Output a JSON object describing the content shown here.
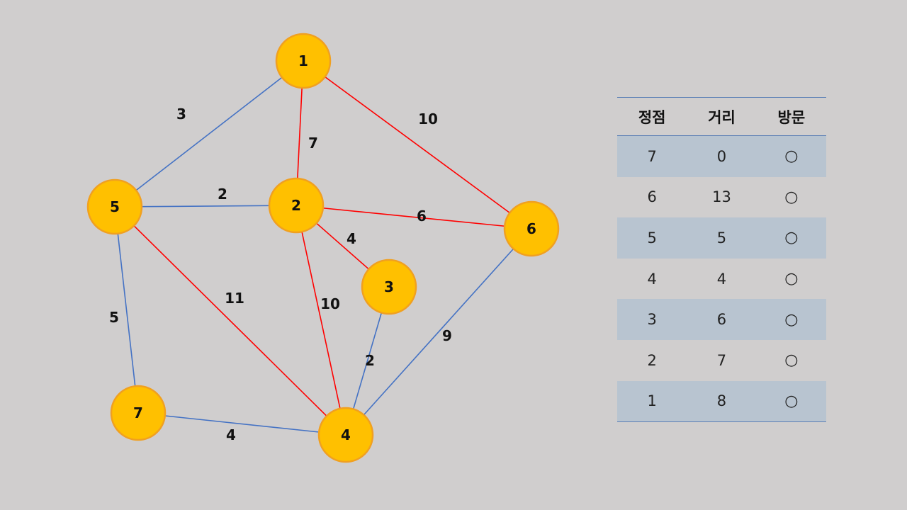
{
  "colors": {
    "background": "#d0cece",
    "node_fill": "#ffc000",
    "node_stroke": "#f0a020",
    "edge_blue": "#4472c4",
    "edge_red": "#ff0000",
    "row_shade": "#b8c4d0"
  },
  "graph": {
    "nodes": [
      {
        "id": "1",
        "label": "1"
      },
      {
        "id": "2",
        "label": "2"
      },
      {
        "id": "3",
        "label": "3"
      },
      {
        "id": "4",
        "label": "4"
      },
      {
        "id": "5",
        "label": "5"
      },
      {
        "id": "6",
        "label": "6"
      },
      {
        "id": "7",
        "label": "7"
      }
    ],
    "edges": [
      {
        "from": "1",
        "to": "5",
        "weight": "3",
        "color": "blue"
      },
      {
        "from": "1",
        "to": "2",
        "weight": "7",
        "color": "red"
      },
      {
        "from": "1",
        "to": "6",
        "weight": "10",
        "color": "red"
      },
      {
        "from": "5",
        "to": "2",
        "weight": "2",
        "color": "blue"
      },
      {
        "from": "2",
        "to": "6",
        "weight": "6",
        "color": "red"
      },
      {
        "from": "2",
        "to": "3",
        "weight": "4",
        "color": "red"
      },
      {
        "from": "5",
        "to": "4",
        "weight": "11",
        "color": "red"
      },
      {
        "from": "2",
        "to": "4",
        "weight": "10",
        "color": "red"
      },
      {
        "from": "5",
        "to": "7",
        "weight": "5",
        "color": "blue"
      },
      {
        "from": "3",
        "to": "4",
        "weight": "2",
        "color": "blue"
      },
      {
        "from": "6",
        "to": "4",
        "weight": "9",
        "color": "blue"
      },
      {
        "from": "7",
        "to": "4",
        "weight": "4",
        "color": "blue"
      }
    ]
  },
  "table": {
    "headers": [
      "정점",
      "거리",
      "방문"
    ],
    "rows": [
      {
        "vertex": "7",
        "distance": "0",
        "visited": "○"
      },
      {
        "vertex": "6",
        "distance": "13",
        "visited": "○"
      },
      {
        "vertex": "5",
        "distance": "5",
        "visited": "○"
      },
      {
        "vertex": "4",
        "distance": "4",
        "visited": "○"
      },
      {
        "vertex": "3",
        "distance": "6",
        "visited": "○"
      },
      {
        "vertex": "2",
        "distance": "7",
        "visited": "○"
      },
      {
        "vertex": "1",
        "distance": "8",
        "visited": "○"
      }
    ]
  }
}
